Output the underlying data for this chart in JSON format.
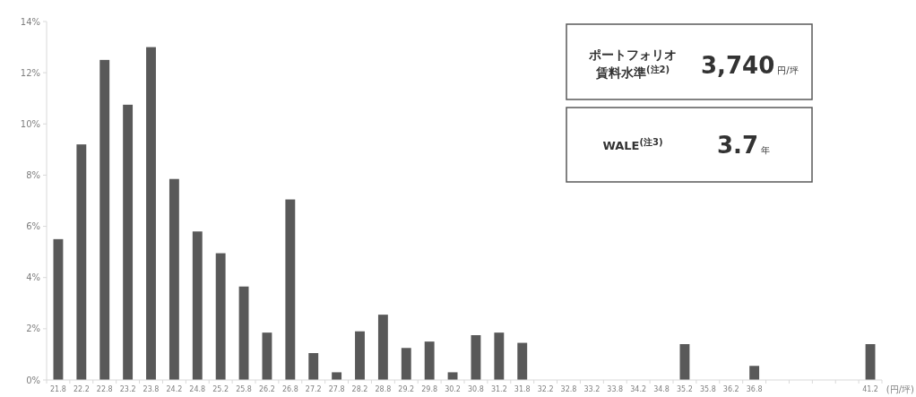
{
  "chart_data": {
    "type": "bar",
    "categories": [
      "21.8",
      "22.2",
      "22.8",
      "23.2",
      "23.8",
      "24.2",
      "24.8",
      "25.2",
      "25.8",
      "26.2",
      "26.8",
      "27.2",
      "27.8",
      "28.2",
      "28.8",
      "29.2",
      "29.8",
      "30.2",
      "30.8",
      "31.2",
      "31.8",
      "32.2",
      "32.8",
      "33.2",
      "33.8",
      "34.2",
      "34.8",
      "35.2",
      "35.8",
      "36.2",
      "36.8",
      null,
      null,
      null,
      null,
      "41.2"
    ],
    "values": [
      5.5,
      9.2,
      12.5,
      10.75,
      13.0,
      7.85,
      5.8,
      4.95,
      3.65,
      1.85,
      7.05,
      1.05,
      0.3,
      1.9,
      2.55,
      1.25,
      1.5,
      0.3,
      1.75,
      1.85,
      1.45,
      null,
      null,
      null,
      null,
      null,
      null,
      1.4,
      null,
      null,
      0.55,
      null,
      null,
      null,
      null,
      1.4
    ],
    "color": "#595959",
    "xlabel": "(円/坪)",
    "ylim": [
      0,
      14
    ],
    "yticks": [
      {
        "value": 0,
        "label": "0%"
      },
      {
        "value": 2,
        "label": "2%"
      },
      {
        "value": 4,
        "label": "4%"
      },
      {
        "value": 6,
        "label": "6%"
      },
      {
        "value": 8,
        "label": "8%"
      },
      {
        "value": 10,
        "label": "10%"
      },
      {
        "value": 12,
        "label": "12%"
      },
      {
        "value": 14,
        "label": "14%"
      }
    ],
    "grid": false,
    "annotations": [
      "ポートフォリオ",
      "賃料水準$^{(注2)}$",
      "3,740",
      "円/坪",
      "WALE$^{(注3)}$",
      "3.7",
      "年"
    ]
  }
}
